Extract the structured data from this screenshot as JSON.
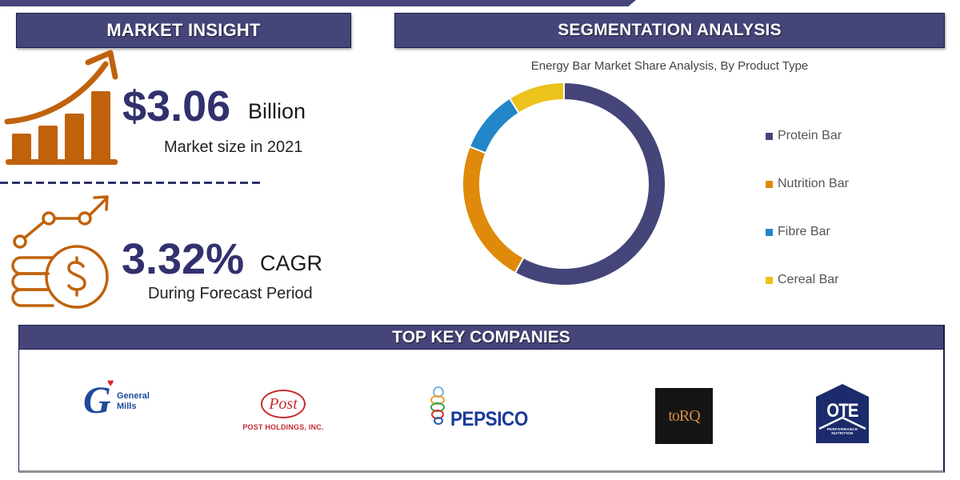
{
  "market_insight": {
    "header": "MARKET INSIGHT",
    "market_size": {
      "value": "$3.06",
      "unit": "Billion",
      "caption": "Market size in 2021",
      "icon": "growth-bar-chart-icon"
    },
    "cagr": {
      "value": "3.32%",
      "unit": "CAGR",
      "caption": "During Forecast Period",
      "icon": "coins-growth-icon"
    }
  },
  "segmentation": {
    "header": "SEGMENTATION ANALYSIS"
  },
  "chart_data": {
    "type": "pie",
    "subtype": "donut",
    "title": "Energy Bar Market Share Analysis, By Product Type",
    "categories": [
      "Protein Bar",
      "Nutrition Bar",
      "Fibre Bar",
      "Cereal Bar"
    ],
    "values": [
      58,
      23,
      10,
      9
    ],
    "unit": "% (estimated from arc angles)",
    "colors": [
      "#45457a",
      "#e08a0b",
      "#2386c8",
      "#ecc21c"
    ],
    "legend_position": "right",
    "start_angle": "12 o'clock, clockwise"
  },
  "legend": {
    "items": [
      {
        "label": "Protein Bar",
        "color": "#45457a"
      },
      {
        "label": "Nutrition Bar",
        "color": "#e08a0b"
      },
      {
        "label": "Fibre Bar",
        "color": "#2386c8"
      },
      {
        "label": "Cereal Bar",
        "color": "#ecc21c"
      }
    ]
  },
  "companies": {
    "header": "TOP KEY COMPANIES",
    "logos": [
      {
        "name": "General Mills",
        "line1": "General",
        "line2": "Mills",
        "glyph": "G",
        "heart": "♥"
      },
      {
        "name": "Post Holdings, Inc.",
        "mark": "Post",
        "text": "POST HOLDINGS, INC."
      },
      {
        "name": "PepsiCo",
        "text": "PEPSICO"
      },
      {
        "name": "Torq",
        "text": "toRQ"
      },
      {
        "name": "OTE Performance Nutrition",
        "text": "OTE",
        "sub1": "PERFORMANCE",
        "sub2": "NUTRITION"
      }
    ]
  },
  "colors": {
    "primary_navy": "#45457a",
    "value_navy": "#31316e",
    "accent_orange": "#c0620c"
  }
}
